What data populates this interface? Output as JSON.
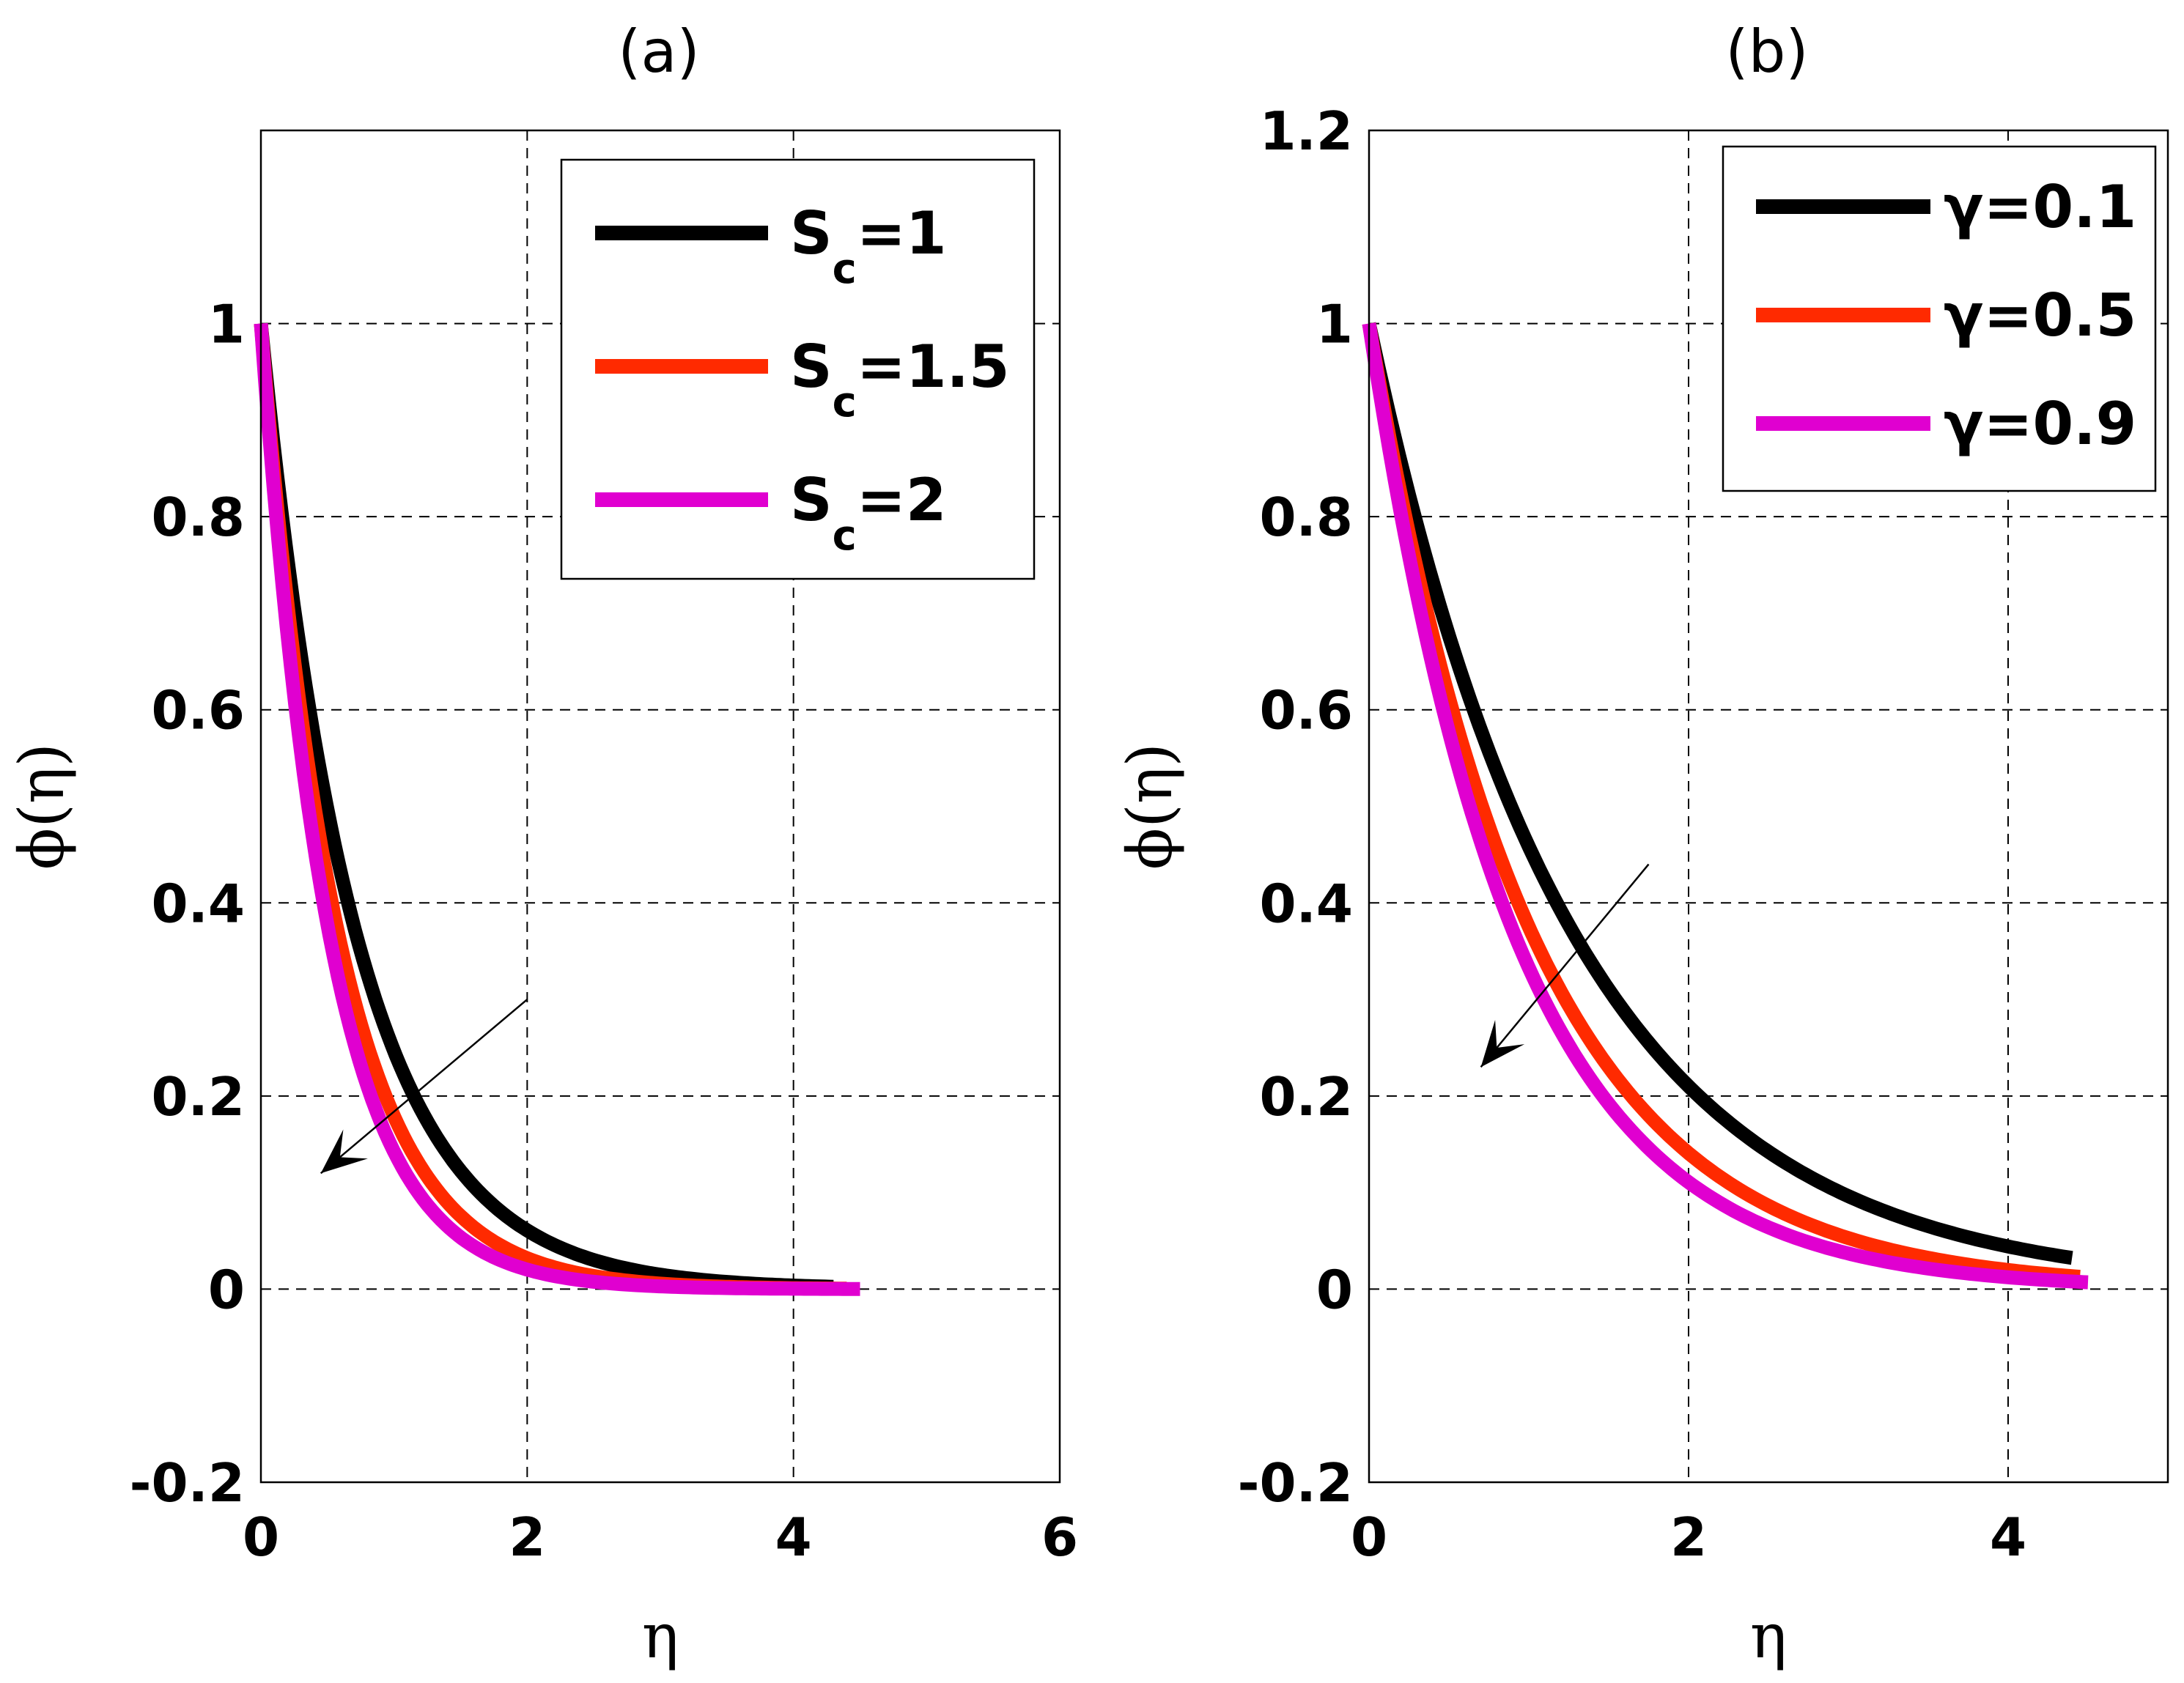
{
  "chart_data": [
    {
      "type": "line",
      "panel_label": "(a)",
      "xlabel": "η",
      "ylabel": "ϕ(η)",
      "xlim": [
        0,
        6
      ],
      "ylim": [
        -0.2,
        1.2
      ],
      "xticks": [
        0,
        2,
        4,
        6
      ],
      "xtick_labels": [
        "0",
        "2",
        "4",
        "6"
      ],
      "yticks": [
        -0.2,
        0,
        0.2,
        0.4,
        0.6,
        0.8,
        1
      ],
      "ytick_labels": [
        "-0.2",
        "0",
        "0.2",
        "0.4",
        "0.6",
        "0.8",
        "1"
      ],
      "grid": true,
      "legend_position": "top-right",
      "series": [
        {
          "name": "Sc=1",
          "legend_main": "S",
          "legend_sub": "c",
          "legend_tail": "=1",
          "color": "#000000",
          "decay": 1.4,
          "x_end": 4.3
        },
        {
          "name": "Sc=1.5",
          "legend_main": "S",
          "legend_sub": "c",
          "legend_tail": "=1.5",
          "color": "#ff2a00",
          "decay": 1.72,
          "x_end": 4.4
        },
        {
          "name": "Sc=2",
          "legend_main": "S",
          "legend_sub": "c",
          "legend_tail": "=2",
          "color": "#e000d0",
          "decay": 1.95,
          "x_end": 4.5
        }
      ],
      "arrow": {
        "from": [
          2.0,
          0.3
        ],
        "to": [
          0.45,
          0.12
        ],
        "meaning": "increasing Sc"
      }
    },
    {
      "type": "line",
      "panel_label": "(b)",
      "xlabel": "η",
      "ylabel": "ϕ(η)",
      "xlim": [
        0,
        5
      ],
      "ylim": [
        -0.2,
        1.2
      ],
      "xticks": [
        0,
        2,
        4
      ],
      "xtick_labels": [
        "0",
        "2",
        "4"
      ],
      "yticks": [
        -0.2,
        0,
        0.2,
        0.4,
        0.6,
        0.8,
        1,
        1.2
      ],
      "ytick_labels": [
        "-0.2",
        "0",
        "0.2",
        "0.4",
        "0.6",
        "0.8",
        "1",
        "1.2"
      ],
      "grid": true,
      "legend_position": "top-right",
      "series": [
        {
          "name": "γ=0.1",
          "legend_main": "γ=0.1",
          "color": "#000000",
          "decay": 0.78,
          "x_end": 4.4
        },
        {
          "name": "γ=0.5",
          "legend_main": "γ=0.5",
          "color": "#ff2a00",
          "decay": 0.98,
          "x_end": 4.45
        },
        {
          "name": "γ=0.9",
          "legend_main": "γ=0.9",
          "color": "#e000d0",
          "decay": 1.1,
          "x_end": 4.5
        }
      ],
      "arrow": {
        "from": [
          1.75,
          0.44
        ],
        "to": [
          0.7,
          0.23
        ],
        "meaning": "increasing γ"
      }
    }
  ]
}
